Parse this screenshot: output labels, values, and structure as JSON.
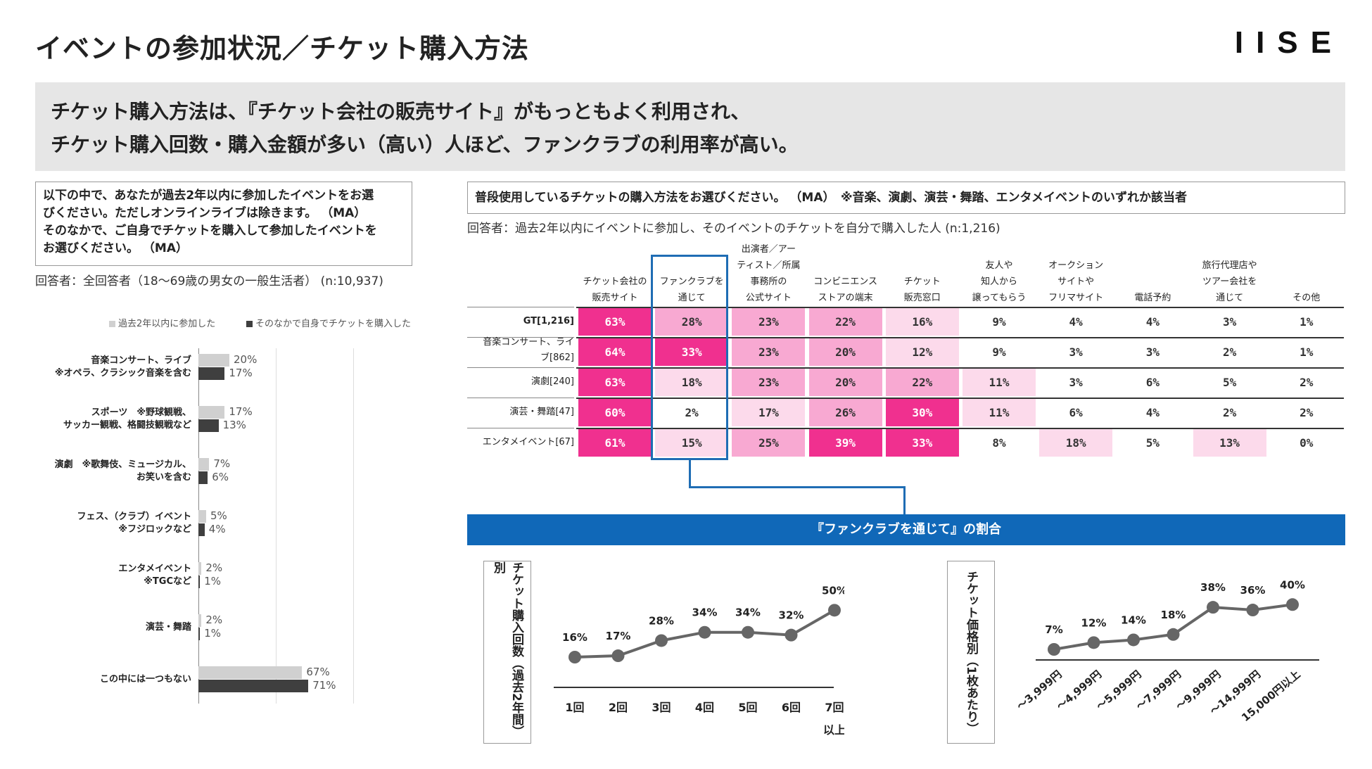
{
  "page": {
    "title": "イベントの参加状況／チケット購入方法",
    "logo": "IISE",
    "headline_line1": "チケット購入方法は、『チケット会社の販売サイト』がもっともよく利用され、",
    "headline_line2": "チケット購入回数・購入金額が多い（高い）人ほど、ファンクラブの利用率が高い。"
  },
  "left": {
    "question_lines": [
      "以下の中で、あなたが過去2年以内に参加したイベントをお選",
      "びください。ただしオンラインライブは除きます。 （MA）",
      "そのなかで、ご自身でチケットを購入して参加したイベントを",
      "お選びください。 （MA）"
    ],
    "respondents": "回答者：全回答者（18～69歳の男女の一般生活者） (n:10,937)"
  },
  "right": {
    "question": "普段使用しているチケットの購入方法をお選びください。 （MA）　※音楽、演劇、演芸・舞踏、エンタメイベントのいずれか該当者",
    "respondents": "回答者：過去2年以内にイベントに参加し、そのイベントのチケットを自分で購入した人 (n:1,216)",
    "banner": "『ファンクラブを通じて』の割合",
    "purchase_count_label": "チケット購入回数（過去2年間）別",
    "price_label": "チケット価格別（1枚あたり）"
  },
  "colors": {
    "light_bar": "#d0d0d0",
    "dark_bar": "#3f3f3f",
    "heat_high": "#f0308f",
    "heat_mid": "#f8a9d2",
    "heat_low": "#fcdaeb",
    "accent_blue": "#1068b8",
    "line": "#666666"
  },
  "chart_data": [
    {
      "type": "bar",
      "orientation": "horizontal",
      "title": "",
      "legend_position": "top",
      "categories": [
        [
          "音楽コンサート、ライブ",
          "※オペラ、クラシック音楽を含む"
        ],
        [
          "スポーツ　※野球観戦、",
          "サッカー観戦、格闘技観戦など"
        ],
        [
          "演劇　※歌舞伎、ミュージカル、",
          "お笑いを含む"
        ],
        [
          "フェス、（クラブ）イベント",
          "※フジロックなど"
        ],
        [
          "エンタメイベント",
          "※TGCなど"
        ],
        [
          "演芸・舞踏"
        ],
        [
          "この中には一つもない"
        ]
      ],
      "series": [
        {
          "name": "過去2年以内に参加した",
          "values": [
            20,
            17,
            7,
            5,
            2,
            2,
            67
          ],
          "labels": [
            "20%",
            "17%",
            "7%",
            "5%",
            "2%",
            "2%",
            "67%"
          ]
        },
        {
          "name": "そのなかで自身でチケットを購入した",
          "values": [
            17,
            13,
            6,
            4,
            1,
            1,
            71
          ],
          "labels": [
            "17%",
            "13%",
            "6%",
            "4%",
            "1%",
            "1%",
            "71%"
          ]
        }
      ],
      "xlim": [
        0,
        100
      ],
      "unit": "%"
    },
    {
      "type": "table",
      "title": "普段使用しているチケットの購入方法",
      "columns": [
        [
          "チケット会社の",
          "販売サイト"
        ],
        [
          "ファンクラブを",
          "通じて"
        ],
        [
          "出演者／アー",
          "ティスト／所属",
          "事務所の",
          "公式サイト"
        ],
        [
          "コンビニエンス",
          "ストアの端末"
        ],
        [
          "チケット",
          "販売窓口"
        ],
        [
          "友人や",
          "知人から",
          "譲ってもらう"
        ],
        [
          "オークション",
          "サイトや",
          "フリマサイト"
        ],
        [
          "電話予約"
        ],
        [
          "旅行代理店や",
          "ツアー会社を",
          "通じて"
        ],
        [
          "その他"
        ]
      ],
      "rows": [
        {
          "label": [
            "GT[1,216]"
          ],
          "values": [
            "63%",
            "28%",
            "23%",
            "22%",
            "16%",
            "9%",
            "4%",
            "4%",
            "3%",
            "1%"
          ],
          "levels": [
            3,
            2,
            2,
            2,
            1,
            0,
            0,
            0,
            0,
            0
          ]
        },
        {
          "label": [
            "音楽コンサート、ライ",
            "ブ[862]"
          ],
          "values": [
            "64%",
            "33%",
            "23%",
            "20%",
            "12%",
            "9%",
            "3%",
            "3%",
            "2%",
            "1%"
          ],
          "levels": [
            3,
            3,
            2,
            2,
            1,
            0,
            0,
            0,
            0,
            0
          ]
        },
        {
          "label": [
            "演劇[240]"
          ],
          "values": [
            "63%",
            "18%",
            "23%",
            "20%",
            "22%",
            "11%",
            "3%",
            "6%",
            "5%",
            "2%"
          ],
          "levels": [
            3,
            1,
            2,
            2,
            2,
            1,
            0,
            0,
            0,
            0
          ]
        },
        {
          "label": [
            "演芸・舞踏[47]"
          ],
          "values": [
            "60%",
            "2%",
            "17%",
            "26%",
            "30%",
            "11%",
            "6%",
            "4%",
            "2%",
            "2%"
          ],
          "levels": [
            3,
            0,
            1,
            2,
            3,
            1,
            0,
            0,
            0,
            0
          ]
        },
        {
          "label": [
            "エンタメイベント[67]"
          ],
          "values": [
            "61%",
            "15%",
            "25%",
            "39%",
            "33%",
            "8%",
            "18%",
            "5%",
            "13%",
            "0%"
          ],
          "levels": [
            3,
            1,
            2,
            3,
            3,
            0,
            1,
            0,
            1,
            0
          ]
        }
      ],
      "highlighted_column": 1
    },
    {
      "type": "line",
      "title": "チケット購入回数（過去2年間）別",
      "categories": [
        "1回",
        "2回",
        "3回",
        "4回",
        "5回",
        "6回",
        "7回以上"
      ],
      "category_lines": [
        [
          "1回"
        ],
        [
          "2回"
        ],
        [
          "3回"
        ],
        [
          "4回"
        ],
        [
          "5回"
        ],
        [
          "6回"
        ],
        [
          "7回",
          "以上"
        ]
      ],
      "values": [
        16,
        17,
        28,
        34,
        34,
        32,
        50
      ],
      "labels": [
        "16%",
        "17%",
        "28%",
        "34%",
        "34%",
        "32%",
        "50%"
      ],
      "ylim": [
        0,
        60
      ],
      "unit": "%"
    },
    {
      "type": "line",
      "title": "チケット価格別（1枚あたり）",
      "categories": [
        "～3,999円",
        "～4,999円",
        "～5,999円",
        "～7,999円",
        "～9,999円",
        "～14,999円",
        "15,000円以上"
      ],
      "values": [
        7,
        12,
        14,
        18,
        38,
        36,
        40
      ],
      "labels": [
        "7%",
        "12%",
        "14%",
        "18%",
        "38%",
        "36%",
        "40%"
      ],
      "ylim": [
        0,
        50
      ],
      "unit": "%"
    }
  ]
}
